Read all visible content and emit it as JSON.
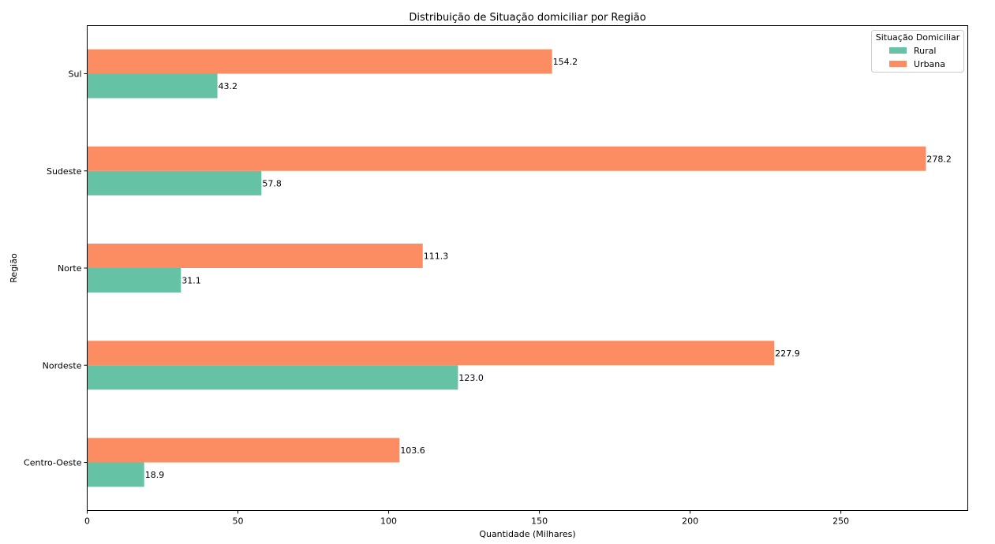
{
  "chart_data": {
    "type": "bar",
    "orientation": "horizontal",
    "title": "Distribuição de Situação domiciliar por Região",
    "xlabel": "Quantidade (Milhares)",
    "ylabel": "Região",
    "categories": [
      "Centro-Oeste",
      "Nordeste",
      "Norte",
      "Sudeste",
      "Sul"
    ],
    "series": [
      {
        "name": "Rural",
        "color": "#66c2a5",
        "values": [
          18.9,
          123.0,
          31.1,
          57.8,
          43.2
        ]
      },
      {
        "name": "Urbana",
        "color": "#fc8d62",
        "values": [
          103.6,
          227.9,
          111.3,
          278.2,
          154.2
        ]
      }
    ],
    "data_labels": {
      "Rural": [
        "18.9",
        "123.0",
        "31.1",
        "57.8",
        "43.2"
      ],
      "Urbana": [
        "103.6",
        "227.9",
        "111.3",
        "278.2",
        "154.2"
      ]
    },
    "xlim": [
      0,
      292.1
    ],
    "xticks": [
      0,
      50,
      100,
      150,
      200,
      250
    ],
    "xtick_labels": [
      "0",
      "50",
      "100",
      "150",
      "200",
      "250"
    ],
    "grid": false,
    "legend": {
      "title": "Situação Domiciliar",
      "placement": "top-right",
      "entries": [
        "Rural",
        "Urbana"
      ]
    }
  }
}
